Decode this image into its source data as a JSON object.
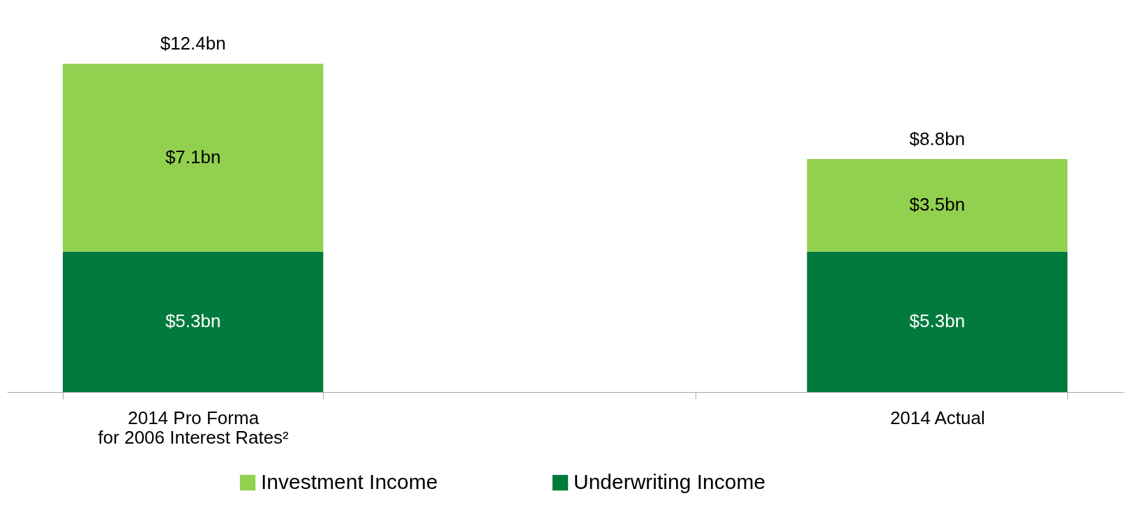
{
  "chart_data": {
    "type": "bar",
    "stacked": true,
    "categories": [
      "2014 Pro Forma\nfor 2006 Interest Rates²",
      null,
      "2014 Actual"
    ],
    "series": [
      {
        "name": "Underwriting Income",
        "color": "#007a3d",
        "values": [
          5.3,
          null,
          5.3
        ],
        "value_labels": [
          "$5.3bn",
          null,
          "$5.3bn"
        ]
      },
      {
        "name": "Investment Income",
        "color": "#92d050",
        "values": [
          7.1,
          null,
          3.5
        ],
        "value_labels": [
          "$7.1bn",
          null,
          "$3.5bn"
        ]
      }
    ],
    "totals": [
      "$12.4bn",
      null,
      "$8.8bn"
    ],
    "legend": "bottom",
    "grid": false
  }
}
